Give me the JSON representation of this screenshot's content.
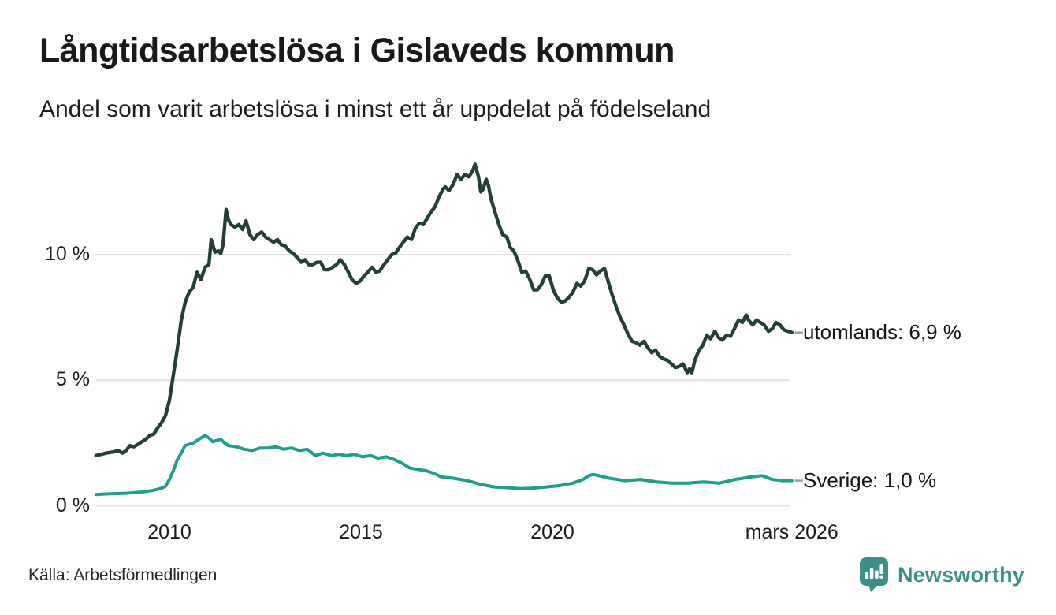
{
  "header": {
    "title": "Långtidsarbetslösa i Gislaveds kommun",
    "subtitle": "Andel som varit arbetslösa i minst ett år uppdelat på födelseland"
  },
  "colors": {
    "utomlands_line": "#233f37",
    "sverige_line": "#1ba08f",
    "grid": "#e3e3e7",
    "dash": "#9aa0a5",
    "text": "#191919",
    "brand": "#3b9189"
  },
  "chart_data": {
    "type": "line",
    "title": "Långtidsarbetslösa i Gislaveds kommun",
    "subtitle": "Andel som varit arbetslösa i minst ett år uppdelat på födelseland",
    "xlabel": "",
    "ylabel": "",
    "xlim": [
      2008.08,
      2026.25
    ],
    "ylim": [
      0,
      14.2
    ],
    "grid": "horizontal",
    "legend_position": "end-of-line-labels",
    "y_ticks": [
      {
        "value": 0,
        "label": "0 %"
      },
      {
        "value": 5,
        "label": "5 %"
      },
      {
        "value": 10,
        "label": "10 %"
      }
    ],
    "x_ticks": [
      {
        "value": 2010,
        "label": "2010"
      },
      {
        "value": 2015,
        "label": "2015"
      },
      {
        "value": 2020,
        "label": "2020"
      },
      {
        "value": 2026.25,
        "label": "mars 2026"
      }
    ],
    "series": [
      {
        "name": "utomlands",
        "color": "#233f37",
        "stroke_width": 4.4,
        "end_label": "utomlands: 6,9 %",
        "points": [
          [
            2008.08,
            2.0
          ],
          [
            2008.35,
            2.1
          ],
          [
            2008.56,
            2.15
          ],
          [
            2008.66,
            2.2
          ],
          [
            2008.77,
            2.1
          ],
          [
            2008.87,
            2.2
          ],
          [
            2008.97,
            2.4
          ],
          [
            2009.07,
            2.35
          ],
          [
            2009.18,
            2.45
          ],
          [
            2009.28,
            2.55
          ],
          [
            2009.38,
            2.65
          ],
          [
            2009.49,
            2.8
          ],
          [
            2009.59,
            2.85
          ],
          [
            2009.69,
            3.1
          ],
          [
            2009.79,
            3.3
          ],
          [
            2009.9,
            3.6
          ],
          [
            2010.0,
            4.2
          ],
          [
            2010.1,
            5.2
          ],
          [
            2010.21,
            6.3
          ],
          [
            2010.31,
            7.4
          ],
          [
            2010.41,
            8.1
          ],
          [
            2010.51,
            8.5
          ],
          [
            2010.62,
            8.7
          ],
          [
            2010.72,
            9.3
          ],
          [
            2010.82,
            9.0
          ],
          [
            2010.93,
            9.5
          ],
          [
            2011.03,
            9.6
          ],
          [
            2011.09,
            10.6
          ],
          [
            2011.19,
            10.1
          ],
          [
            2011.28,
            10.15
          ],
          [
            2011.34,
            10.05
          ],
          [
            2011.4,
            10.4
          ],
          [
            2011.48,
            11.8
          ],
          [
            2011.54,
            11.4
          ],
          [
            2011.6,
            11.2
          ],
          [
            2011.71,
            11.1
          ],
          [
            2011.81,
            11.2
          ],
          [
            2011.91,
            11.0
          ],
          [
            2012.0,
            11.35
          ],
          [
            2012.1,
            10.8
          ],
          [
            2012.2,
            10.6
          ],
          [
            2012.3,
            10.8
          ],
          [
            2012.41,
            10.9
          ],
          [
            2012.51,
            10.7
          ],
          [
            2012.61,
            10.6
          ],
          [
            2012.72,
            10.5
          ],
          [
            2012.82,
            10.6
          ],
          [
            2012.92,
            10.4
          ],
          [
            2013.02,
            10.35
          ],
          [
            2013.13,
            10.15
          ],
          [
            2013.23,
            10.05
          ],
          [
            2013.33,
            9.9
          ],
          [
            2013.44,
            9.7
          ],
          [
            2013.54,
            9.8
          ],
          [
            2013.64,
            9.6
          ],
          [
            2013.74,
            9.6
          ],
          [
            2013.85,
            9.7
          ],
          [
            2013.95,
            9.7
          ],
          [
            2014.05,
            9.4
          ],
          [
            2014.16,
            9.4
          ],
          [
            2014.26,
            9.5
          ],
          [
            2014.36,
            9.6
          ],
          [
            2014.46,
            9.8
          ],
          [
            2014.57,
            9.6
          ],
          [
            2014.67,
            9.3
          ],
          [
            2014.77,
            9.0
          ],
          [
            2014.88,
            8.85
          ],
          [
            2014.98,
            8.95
          ],
          [
            2015.08,
            9.15
          ],
          [
            2015.18,
            9.3
          ],
          [
            2015.29,
            9.5
          ],
          [
            2015.39,
            9.3
          ],
          [
            2015.49,
            9.35
          ],
          [
            2015.6,
            9.6
          ],
          [
            2015.7,
            9.8
          ],
          [
            2015.8,
            10.0
          ],
          [
            2015.9,
            10.05
          ],
          [
            2016.01,
            10.3
          ],
          [
            2016.11,
            10.5
          ],
          [
            2016.21,
            10.7
          ],
          [
            2016.32,
            10.6
          ],
          [
            2016.42,
            11.05
          ],
          [
            2016.52,
            11.25
          ],
          [
            2016.63,
            11.2
          ],
          [
            2016.73,
            11.45
          ],
          [
            2016.83,
            11.7
          ],
          [
            2016.93,
            11.9
          ],
          [
            2017.04,
            12.3
          ],
          [
            2017.14,
            12.6
          ],
          [
            2017.2,
            12.7
          ],
          [
            2017.3,
            12.55
          ],
          [
            2017.41,
            12.8
          ],
          [
            2017.51,
            13.2
          ],
          [
            2017.61,
            13.0
          ],
          [
            2017.72,
            13.2
          ],
          [
            2017.82,
            13.1
          ],
          [
            2017.92,
            13.35
          ],
          [
            2017.98,
            13.6
          ],
          [
            2018.07,
            13.1
          ],
          [
            2018.13,
            12.5
          ],
          [
            2018.19,
            12.6
          ],
          [
            2018.27,
            13.0
          ],
          [
            2018.33,
            12.75
          ],
          [
            2018.4,
            12.2
          ],
          [
            2018.5,
            11.7
          ],
          [
            2018.6,
            11.2
          ],
          [
            2018.7,
            10.8
          ],
          [
            2018.81,
            10.7
          ],
          [
            2018.89,
            10.3
          ],
          [
            2018.99,
            10.15
          ],
          [
            2019.09,
            9.8
          ],
          [
            2019.2,
            9.3
          ],
          [
            2019.3,
            9.35
          ],
          [
            2019.4,
            9.05
          ],
          [
            2019.51,
            8.6
          ],
          [
            2019.61,
            8.6
          ],
          [
            2019.71,
            8.8
          ],
          [
            2019.81,
            9.15
          ],
          [
            2019.92,
            9.15
          ],
          [
            2020.02,
            8.6
          ],
          [
            2020.12,
            8.3
          ],
          [
            2020.23,
            8.1
          ],
          [
            2020.33,
            8.15
          ],
          [
            2020.43,
            8.3
          ],
          [
            2020.53,
            8.5
          ],
          [
            2020.64,
            8.85
          ],
          [
            2020.74,
            8.75
          ],
          [
            2020.84,
            8.95
          ],
          [
            2020.95,
            9.45
          ],
          [
            2021.05,
            9.4
          ],
          [
            2021.15,
            9.2
          ],
          [
            2021.25,
            9.35
          ],
          [
            2021.36,
            9.45
          ],
          [
            2021.46,
            8.9
          ],
          [
            2021.56,
            8.4
          ],
          [
            2021.67,
            7.9
          ],
          [
            2021.77,
            7.5
          ],
          [
            2021.87,
            7.2
          ],
          [
            2021.97,
            6.85
          ],
          [
            2022.08,
            6.55
          ],
          [
            2022.18,
            6.5
          ],
          [
            2022.28,
            6.4
          ],
          [
            2022.39,
            6.55
          ],
          [
            2022.49,
            6.3
          ],
          [
            2022.59,
            6.1
          ],
          [
            2022.69,
            6.2
          ],
          [
            2022.8,
            5.95
          ],
          [
            2022.9,
            5.85
          ],
          [
            2023.0,
            5.8
          ],
          [
            2023.11,
            5.65
          ],
          [
            2023.21,
            5.5
          ],
          [
            2023.31,
            5.55
          ],
          [
            2023.41,
            5.65
          ],
          [
            2023.52,
            5.3
          ],
          [
            2023.58,
            5.45
          ],
          [
            2023.64,
            5.3
          ],
          [
            2023.72,
            5.8
          ],
          [
            2023.83,
            6.2
          ],
          [
            2023.93,
            6.4
          ],
          [
            2024.03,
            6.8
          ],
          [
            2024.13,
            6.65
          ],
          [
            2024.24,
            6.95
          ],
          [
            2024.34,
            6.7
          ],
          [
            2024.44,
            6.6
          ],
          [
            2024.55,
            6.8
          ],
          [
            2024.65,
            6.75
          ],
          [
            2024.75,
            7.05
          ],
          [
            2024.86,
            7.4
          ],
          [
            2024.96,
            7.3
          ],
          [
            2025.06,
            7.6
          ],
          [
            2025.12,
            7.4
          ],
          [
            2025.23,
            7.2
          ],
          [
            2025.33,
            7.4
          ],
          [
            2025.43,
            7.3
          ],
          [
            2025.53,
            7.2
          ],
          [
            2025.64,
            6.95
          ],
          [
            2025.74,
            7.05
          ],
          [
            2025.84,
            7.3
          ],
          [
            2025.94,
            7.2
          ],
          [
            2026.05,
            7.0
          ],
          [
            2026.15,
            6.95
          ],
          [
            2026.25,
            6.9
          ]
        ]
      },
      {
        "name": "Sverige",
        "color": "#1ba08f",
        "stroke_width": 4.0,
        "end_label": "Sverige: 1,0 %",
        "points": [
          [
            2008.08,
            0.45
          ],
          [
            2008.46,
            0.48
          ],
          [
            2008.87,
            0.5
          ],
          [
            2009.28,
            0.55
          ],
          [
            2009.59,
            0.62
          ],
          [
            2009.79,
            0.7
          ],
          [
            2009.9,
            0.78
          ],
          [
            2010.0,
            1.05
          ],
          [
            2010.1,
            1.4
          ],
          [
            2010.21,
            1.85
          ],
          [
            2010.31,
            2.1
          ],
          [
            2010.41,
            2.4
          ],
          [
            2010.51,
            2.45
          ],
          [
            2010.62,
            2.5
          ],
          [
            2010.72,
            2.6
          ],
          [
            2010.82,
            2.7
          ],
          [
            2010.93,
            2.8
          ],
          [
            2011.03,
            2.7
          ],
          [
            2011.13,
            2.55
          ],
          [
            2011.23,
            2.6
          ],
          [
            2011.34,
            2.65
          ],
          [
            2011.44,
            2.5
          ],
          [
            2011.54,
            2.4
          ],
          [
            2011.75,
            2.35
          ],
          [
            2011.95,
            2.25
          ],
          [
            2012.16,
            2.2
          ],
          [
            2012.37,
            2.3
          ],
          [
            2012.57,
            2.3
          ],
          [
            2012.78,
            2.35
          ],
          [
            2012.98,
            2.25
          ],
          [
            2013.19,
            2.3
          ],
          [
            2013.39,
            2.2
          ],
          [
            2013.6,
            2.25
          ],
          [
            2013.81,
            2.0
          ],
          [
            2014.01,
            2.1
          ],
          [
            2014.22,
            2.0
          ],
          [
            2014.42,
            2.05
          ],
          [
            2014.63,
            2.0
          ],
          [
            2014.83,
            2.05
          ],
          [
            2015.04,
            1.95
          ],
          [
            2015.25,
            2.0
          ],
          [
            2015.45,
            1.9
          ],
          [
            2015.66,
            1.95
          ],
          [
            2015.86,
            1.85
          ],
          [
            2016.07,
            1.7
          ],
          [
            2016.28,
            1.5
          ],
          [
            2016.48,
            1.45
          ],
          [
            2016.69,
            1.4
          ],
          [
            2016.89,
            1.3
          ],
          [
            2017.1,
            1.15
          ],
          [
            2017.41,
            1.1
          ],
          [
            2017.78,
            1.0
          ],
          [
            2018.13,
            0.85
          ],
          [
            2018.48,
            0.75
          ],
          [
            2018.85,
            0.72
          ],
          [
            2019.16,
            0.68
          ],
          [
            2019.46,
            0.7
          ],
          [
            2019.83,
            0.75
          ],
          [
            2020.18,
            0.8
          ],
          [
            2020.53,
            0.9
          ],
          [
            2020.8,
            1.05
          ],
          [
            2020.95,
            1.2
          ],
          [
            2021.07,
            1.25
          ],
          [
            2021.21,
            1.2
          ],
          [
            2021.48,
            1.1
          ],
          [
            2021.89,
            1.0
          ],
          [
            2022.3,
            1.05
          ],
          [
            2022.72,
            0.95
          ],
          [
            2023.13,
            0.9
          ],
          [
            2023.54,
            0.9
          ],
          [
            2023.95,
            0.95
          ],
          [
            2024.36,
            0.9
          ],
          [
            2024.77,
            1.05
          ],
          [
            2025.19,
            1.15
          ],
          [
            2025.47,
            1.2
          ],
          [
            2025.74,
            1.05
          ],
          [
            2026.01,
            1.0
          ],
          [
            2026.25,
            1.0
          ]
        ]
      }
    ]
  },
  "footer": {
    "source": "Källa: Arbetsförmedlingen",
    "brand": "Newsworthy"
  }
}
